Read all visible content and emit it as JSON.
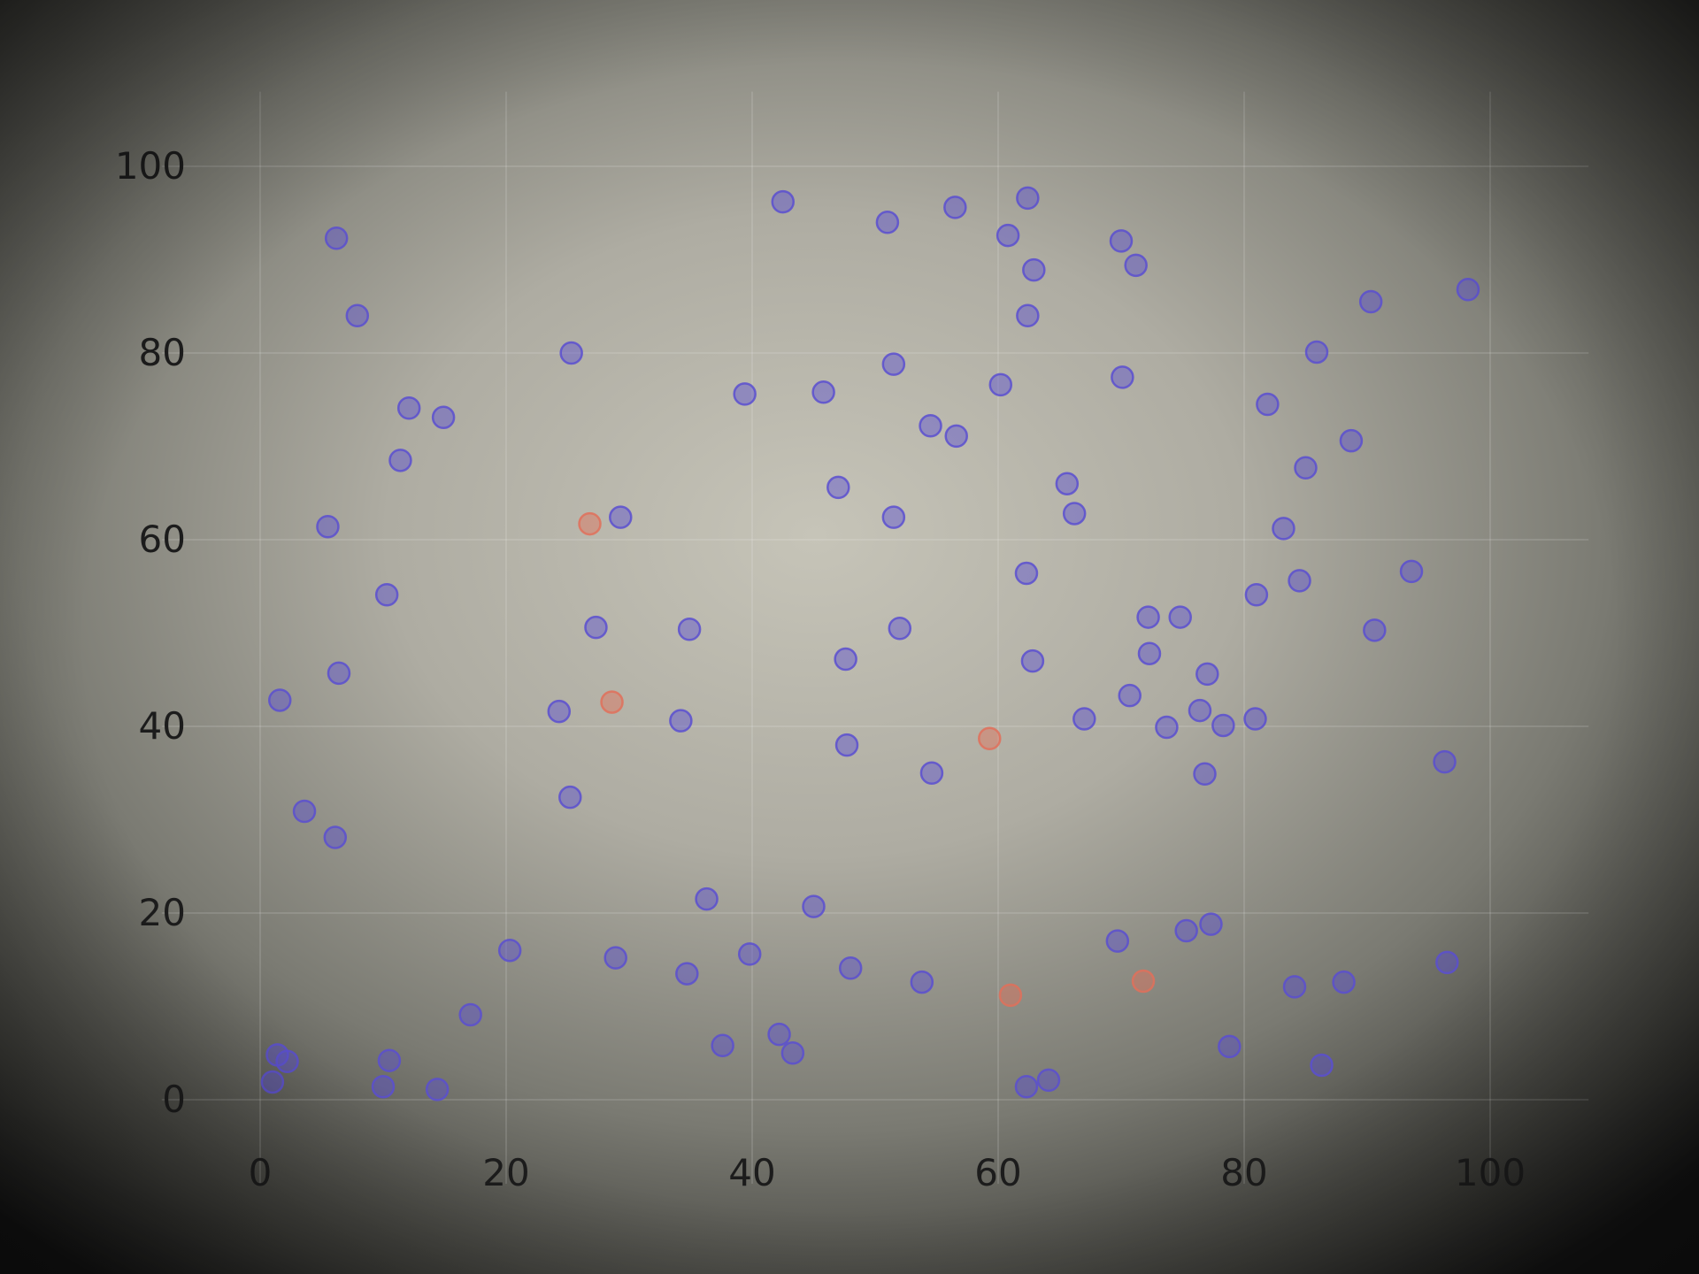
{
  "chart_data": {
    "type": "scatter",
    "title": "",
    "xlabel": "",
    "ylabel": "",
    "xlim": [
      -8,
      108
    ],
    "ylim": [
      -9,
      108
    ],
    "xticks": [
      0,
      20,
      40,
      60,
      80,
      100
    ],
    "yticks": [
      0,
      20,
      40,
      60,
      80,
      100
    ],
    "grid": true,
    "colors": {
      "inlier": "#5a4fd0",
      "outlier": "#e0705a",
      "background_center": "#c4c2b6",
      "background_edge": "#141414"
    },
    "series": [
      {
        "color": "#5a4fd0",
        "x": [
          6.2,
          7.9,
          12.1,
          14.9,
          11.4,
          5.5,
          10.3,
          6.4,
          1.6,
          3.6,
          6.1,
          1.4,
          2.2,
          1.0,
          10.5,
          10.0,
          14.4,
          17.1,
          20.3,
          25.3,
          29.3,
          27.3,
          34.9,
          24.3,
          25.2,
          34.2,
          28.9,
          34.7,
          36.3,
          37.6,
          39.8,
          42.5,
          42.2,
          43.3,
          39.4,
          45.8,
          47.0,
          47.6,
          47.7,
          45.0,
          48.0,
          51.0,
          51.5,
          51.5,
          52.0,
          54.5,
          56.6,
          54.6,
          53.8,
          56.5,
          60.8,
          62.4,
          62.9,
          62.4,
          60.2,
          62.3,
          62.8,
          65.6,
          66.2,
          67.0,
          62.3,
          64.1,
          70.0,
          71.2,
          70.1,
          72.2,
          74.8,
          72.3,
          70.7,
          73.7,
          77.0,
          76.4,
          78.3,
          76.8,
          81.0,
          81.9,
          80.9,
          83.2,
          84.5,
          85.0,
          85.9,
          88.7,
          90.3,
          98.2,
          93.6,
          90.6,
          96.3,
          75.3,
          77.3,
          69.7,
          78.8,
          84.1,
          88.1,
          96.5,
          86.3
        ],
        "y": [
          92.3,
          84.0,
          74.1,
          73.1,
          68.5,
          61.4,
          54.1,
          45.7,
          42.8,
          30.9,
          28.1,
          4.8,
          4.1,
          1.9,
          4.2,
          1.4,
          1.1,
          9.1,
          16.0,
          80.0,
          62.4,
          50.6,
          50.4,
          41.6,
          32.4,
          40.6,
          15.2,
          13.5,
          21.5,
          5.8,
          15.6,
          96.2,
          7.0,
          5.0,
          75.6,
          75.8,
          65.6,
          47.2,
          38.0,
          20.7,
          14.1,
          94.0,
          78.8,
          62.4,
          50.5,
          72.2,
          71.1,
          35.0,
          12.6,
          95.6,
          92.6,
          96.6,
          88.9,
          84.0,
          76.6,
          56.4,
          47.0,
          66.0,
          62.8,
          40.8,
          1.4,
          2.1,
          92.0,
          89.4,
          77.4,
          51.7,
          51.7,
          47.8,
          43.3,
          39.9,
          45.6,
          41.7,
          40.1,
          34.9,
          54.1,
          74.5,
          40.8,
          61.2,
          55.6,
          67.7,
          80.1,
          70.6,
          85.5,
          86.8,
          56.6,
          50.3,
          36.2,
          18.1,
          18.8,
          17.0,
          5.7,
          12.1,
          12.6,
          14.7,
          3.7
        ]
      },
      {
        "color": "#e0705a",
        "x": [
          26.8,
          28.6,
          59.3,
          61.0,
          71.8
        ],
        "y": [
          61.7,
          42.6,
          38.7,
          11.2,
          12.7
        ]
      }
    ]
  }
}
